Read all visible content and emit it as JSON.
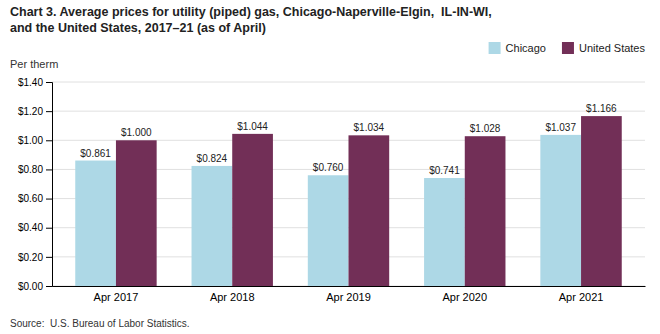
{
  "chart_data": {
    "type": "bar",
    "title": "Chart 3. Average prices for utility (piped) gas, Chicago-Naperville-Elgin,  IL-IN-WI,\nand the United States, 2017–21 (as of April)",
    "ylabel": "Per therm",
    "source": "Source:  U.S. Bureau of Labor Statistics.",
    "categories": [
      "Apr 2017",
      "Apr 2018",
      "Apr 2019",
      "Apr 2020",
      "Apr 2021"
    ],
    "series": [
      {
        "name": "Chicago",
        "color": "#ADD8E6",
        "values": [
          0.861,
          0.824,
          0.76,
          0.741,
          1.037
        ],
        "value_labels": [
          "$0.861",
          "$0.824",
          "$0.760",
          "$0.741",
          "$1.037"
        ]
      },
      {
        "name": "United States",
        "color": "#722F57",
        "values": [
          1.0,
          1.044,
          1.034,
          1.028,
          1.166
        ],
        "value_labels": [
          "$1.000",
          "$1.044",
          "$1.034",
          "$1.028",
          "$1.166"
        ]
      }
    ],
    "ylim": [
      0,
      1.4
    ],
    "yticks": [
      {
        "value": 0.0,
        "label": "$0.00"
      },
      {
        "value": 0.2,
        "label": "$0.20"
      },
      {
        "value": 0.4,
        "label": "$0.40"
      },
      {
        "value": 0.6,
        "label": "$0.60"
      },
      {
        "value": 0.8,
        "label": "$0.80"
      },
      {
        "value": 1.0,
        "label": "$1.00"
      },
      {
        "value": 1.2,
        "label": "$1.20"
      },
      {
        "value": 1.4,
        "label": "$1.40"
      }
    ],
    "grid": true,
    "legend": "upper right",
    "data_labels": true
  }
}
